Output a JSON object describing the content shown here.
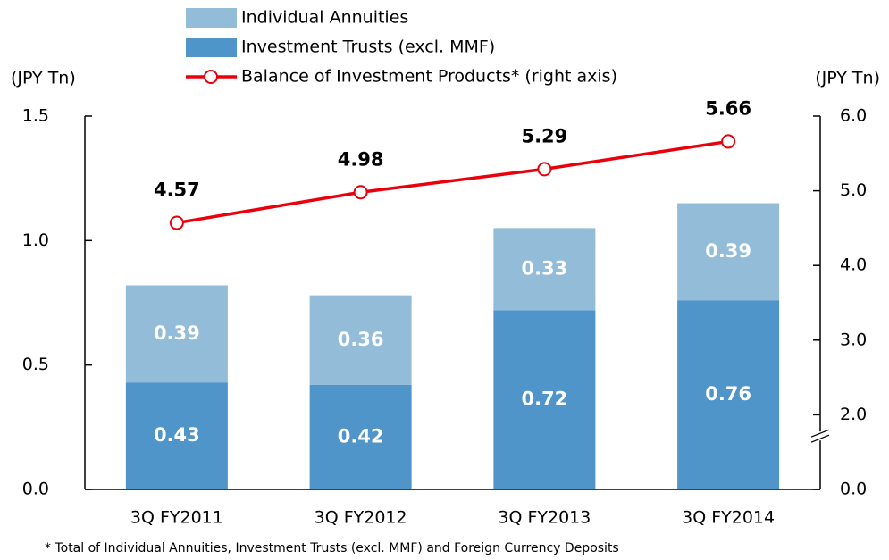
{
  "chart_data": {
    "type": "bar",
    "categories": [
      "3Q FY2011",
      "3Q FY2012",
      "3Q FY2013",
      "3Q FY2014"
    ],
    "stacked": true,
    "series": [
      {
        "name": "Investment Trusts (excl. MMF)",
        "color": "#4f95c9",
        "values": [
          0.43,
          0.42,
          0.72,
          0.76
        ]
      },
      {
        "name": "Individual Annuities",
        "color": "#93bcd9",
        "values": [
          0.39,
          0.36,
          0.33,
          0.39
        ]
      },
      {
        "name": "Balance of Investment Products* (right axis)",
        "type": "line",
        "axis": "y2",
        "color": "#e8000b",
        "values": [
          4.57,
          4.98,
          5.29,
          5.66
        ]
      }
    ],
    "ylabel": "(JPY Tn)",
    "y2label": "(JPY Tn)",
    "ylim": [
      0,
      1.5
    ],
    "yticks": [
      {
        "value": 0,
        "label": "0.0"
      },
      0.5,
      {
        "value": 1,
        "label": "1.0"
      },
      1.5
    ],
    "y2lim": [
      0,
      6
    ],
    "y2ticks": [
      {
        "value": 0,
        "label": "0.0"
      },
      {
        "value": 2,
        "label": "2.0"
      },
      {
        "value": 3,
        "label": "3.0"
      },
      {
        "value": 4,
        "label": "4.0"
      },
      {
        "value": 5,
        "label": "5.0"
      },
      {
        "value": 6,
        "label": "6.0"
      }
    ],
    "y2_axis_break": true,
    "footnote": "* Total of Individual Annuities, Investment Trusts (excl. MMF) and Foreign Currency Deposits"
  }
}
